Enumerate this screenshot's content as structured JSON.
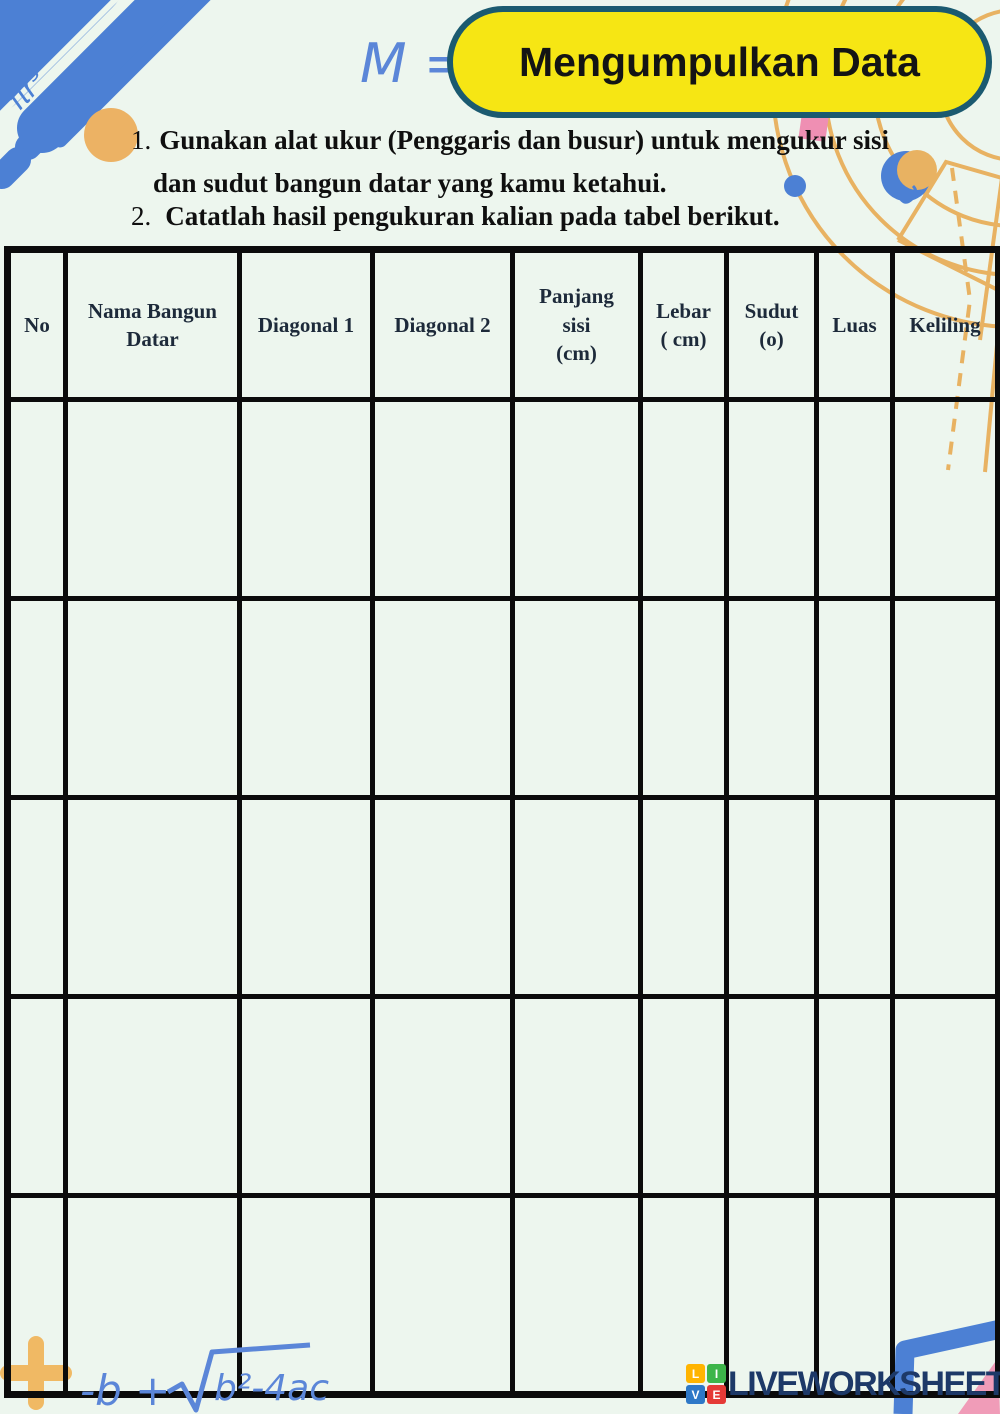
{
  "title": "Mengumpulkan Data",
  "instructions": {
    "item1": {
      "number": "1.",
      "line1": "Gunakan alat ukur (Penggaris dan busur) untuk mengukur sisi",
      "line2": "dan sudut bangun datar yang kamu ketahui."
    },
    "item2": {
      "number": "2.",
      "text": "Catatlah hasil pengukuran kalian pada tabel berikut."
    }
  },
  "table": {
    "columns": [
      "No",
      "Nama Bangun\nDatar",
      "Diagonal 1",
      "Diagonal 2",
      "Panjang\nsisi\n(cm)",
      "Lebar\n( cm)",
      "Sudut\n(o)",
      "Luas",
      "Keliling"
    ],
    "body_rows": 5
  },
  "handwriting": {
    "top_formula": "M = (",
    "pi_formula": "πr³",
    "bottom_formula_prefix": "-b +",
    "bottom_formula_radicand": "b²-4ac"
  },
  "logo": {
    "squares": [
      {
        "letter": "L",
        "color": "#ffb400"
      },
      {
        "letter": "I",
        "color": "#3db54a"
      },
      {
        "letter": "V",
        "color": "#2e78c7"
      },
      {
        "letter": "E",
        "color": "#e53a36"
      }
    ],
    "text": "LIVEWORKSHEETS"
  },
  "colors": {
    "background": "#edf6ee",
    "bubble_fill": "#f6e614",
    "bubble_border": "#1b5a70",
    "stripe_blue": "#4c80d4",
    "handwriting_blue": "#5b86d8",
    "orbit_orange": "#e8b262",
    "bullet_orange": "#ecb264",
    "pink": "#ef8fb3",
    "table_border": "#0b0b0b",
    "logo_navy": "#1d3968"
  }
}
